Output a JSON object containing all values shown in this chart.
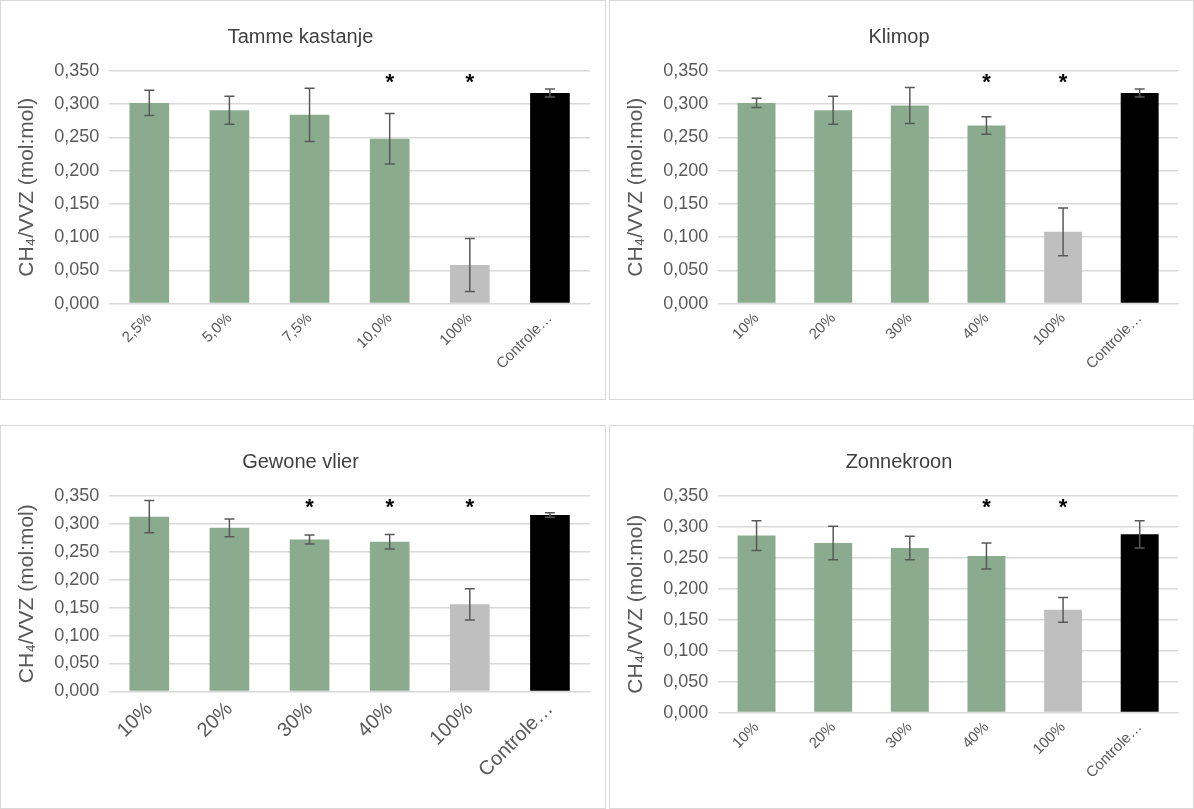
{
  "chart_data": [
    {
      "type": "bar",
      "title": "Tamme kastanje",
      "ylabel": "CH₄/VVZ (mol:mol)",
      "categories": [
        "2,5%",
        "5,0%",
        "7,5%",
        "10,0%",
        "100%",
        "Controle…"
      ],
      "values": [
        0.302,
        0.291,
        0.284,
        0.248,
        0.058,
        0.317
      ],
      "errors": [
        0.019,
        0.021,
        0.04,
        0.038,
        0.04,
        0.006
      ],
      "colors": [
        "#8aab8e",
        "#8aab8e",
        "#8aab8e",
        "#8aab8e",
        "#bfbfbf",
        "#000000"
      ],
      "ylim": [
        0,
        0.35
      ],
      "yticks": [
        {
          "value": 0,
          "label": "0,000"
        },
        {
          "value": 0.05,
          "label": "0,050"
        },
        {
          "value": 0.1,
          "label": "0,100"
        },
        {
          "value": 0.15,
          "label": "0,150"
        },
        {
          "value": 0.2,
          "label": "0,200"
        },
        {
          "value": 0.25,
          "label": "0,250"
        },
        {
          "value": 0.3,
          "label": "0,300"
        },
        {
          "value": 0.35,
          "label": "0,350"
        }
      ],
      "grid": "y",
      "legend": false,
      "annotations": [
        "*",
        "*"
      ]
    },
    {
      "type": "bar",
      "title": "Klimop",
      "ylabel": "CH₄/VVZ (mol:mol)",
      "categories": [
        "10%",
        "20%",
        "30%",
        "40%",
        "100%",
        "Controle…"
      ],
      "values": [
        0.302,
        0.291,
        0.298,
        0.268,
        0.108,
        0.317
      ],
      "errors": [
        0.007,
        0.021,
        0.027,
        0.013,
        0.036,
        0.006
      ],
      "colors": [
        "#8aab8e",
        "#8aab8e",
        "#8aab8e",
        "#8aab8e",
        "#bfbfbf",
        "#000000"
      ],
      "ylim": [
        0,
        0.35
      ],
      "yticks": [
        {
          "value": 0,
          "label": "0,000"
        },
        {
          "value": 0.05,
          "label": "0,050"
        },
        {
          "value": 0.1,
          "label": "0,100"
        },
        {
          "value": 0.15,
          "label": "0,150"
        },
        {
          "value": 0.2,
          "label": "0,200"
        },
        {
          "value": 0.25,
          "label": "0,250"
        },
        {
          "value": 0.3,
          "label": "0,300"
        },
        {
          "value": 0.35,
          "label": "0,350"
        }
      ],
      "grid": "y",
      "legend": false,
      "annotations": [
        "*",
        "*"
      ]
    },
    {
      "type": "bar",
      "title": "Gewone vlier",
      "ylabel": "CH₄/VVZ (mol:mol)",
      "categories": [
        "10%",
        "20%",
        "30%",
        "40%",
        "100%",
        "Controle…"
      ],
      "values": [
        0.313,
        0.293,
        0.272,
        0.268,
        0.156,
        0.316
      ],
      "errors": [
        0.029,
        0.016,
        0.008,
        0.013,
        0.028,
        0.004
      ],
      "colors": [
        "#8aab8e",
        "#8aab8e",
        "#8aab8e",
        "#8aab8e",
        "#bfbfbf",
        "#000000"
      ],
      "ylim": [
        0,
        0.35
      ],
      "yticks": [
        {
          "value": 0,
          "label": "0,000"
        },
        {
          "value": 0.05,
          "label": "0,050"
        },
        {
          "value": 0.1,
          "label": "0,100"
        },
        {
          "value": 0.15,
          "label": "0,150"
        },
        {
          "value": 0.2,
          "label": "0,200"
        },
        {
          "value": 0.25,
          "label": "0,250"
        },
        {
          "value": 0.3,
          "label": "0,300"
        },
        {
          "value": 0.35,
          "label": "0,350"
        }
      ],
      "grid": "y",
      "legend": false,
      "annotations": [
        "*",
        "*",
        "*"
      ]
    },
    {
      "type": "bar",
      "title": "Zonnekroon",
      "ylabel": "CH₄/VVZ (mol:mol)",
      "categories": [
        "10%",
        "20%",
        "30%",
        "40%",
        "100%",
        "Controle…"
      ],
      "values": [
        0.286,
        0.274,
        0.266,
        0.253,
        0.166,
        0.288
      ],
      "errors": [
        0.024,
        0.027,
        0.019,
        0.021,
        0.02,
        0.022
      ],
      "colors": [
        "#8aab8e",
        "#8aab8e",
        "#8aab8e",
        "#8aab8e",
        "#bfbfbf",
        "#000000"
      ],
      "ylim": [
        0,
        0.35
      ],
      "yticks": [
        {
          "value": 0,
          "label": "0,000"
        },
        {
          "value": 0.05,
          "label": "0,050"
        },
        {
          "value": 0.1,
          "label": "0,100"
        },
        {
          "value": 0.15,
          "label": "0,150"
        },
        {
          "value": 0.2,
          "label": "0,200"
        },
        {
          "value": 0.25,
          "label": "0,250"
        },
        {
          "value": 0.3,
          "label": "0,300"
        },
        {
          "value": 0.35,
          "label": "0,350"
        }
      ],
      "grid": "y",
      "legend": false,
      "annotations": [
        "*",
        "*"
      ]
    }
  ]
}
